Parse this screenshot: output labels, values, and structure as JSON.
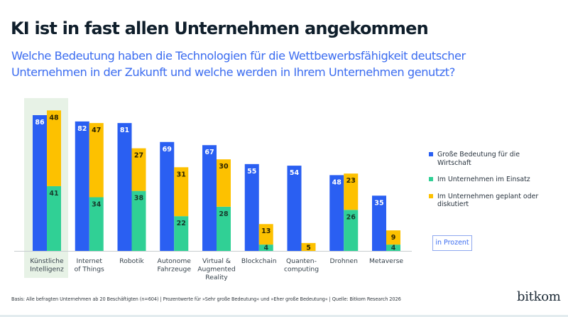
{
  "header": {
    "title": "KI ist in fast allen Unternehmen angekommen",
    "subtitle": "Welche Bedeutung haben die Technologien für die Wettbewerbsfähigkeit deutscher Unternehmen in der Zukunft und welche werden in Ihrem Unternehmen genutzt?"
  },
  "colors": {
    "blue": "#2a5ff2",
    "green": "#30d095",
    "yellow": "#fdc100",
    "highlight": "#e7f2e6",
    "axis": "#c8cdd0"
  },
  "chart_data": {
    "type": "bar",
    "title": "KI ist in fast allen Unternehmen angekommen",
    "xlabel": "",
    "ylabel": "",
    "ylim": [
      0,
      100
    ],
    "grid": false,
    "legend_position": "right",
    "highlighted_category": 0,
    "categories": [
      "Künstliche Intelligenz",
      "Internet of Things",
      "Robotik",
      "Autonome Fahrzeuge",
      "Virtual & Augmented Reality",
      "Blockchain",
      "Quanten-computing",
      "Drohnen",
      "Metaverse"
    ],
    "category_lines": [
      [
        "Künstliche",
        "Intelligenz"
      ],
      [
        "Internet",
        "of Things"
      ],
      [
        "Robotik"
      ],
      [
        "Autonome",
        "Fahrzeuge"
      ],
      [
        "Virtual &",
        "Augmented",
        "Reality"
      ],
      [
        "Blockchain"
      ],
      [
        "Quanten-",
        "computing"
      ],
      [
        "Drohnen"
      ],
      [
        "Metaverse"
      ]
    ],
    "series": [
      {
        "name": "Große Bedeutung für die Wirtschaft",
        "stack": "a",
        "color_key": "blue",
        "values": [
          86,
          82,
          81,
          69,
          67,
          55,
          54,
          48,
          35
        ]
      },
      {
        "name": "Im Unternehmen im Einsatz",
        "stack": "b",
        "color_key": "green",
        "values": [
          41,
          34,
          38,
          22,
          28,
          4,
          0,
          26,
          4
        ]
      },
      {
        "name": "Im Unternehmen geplant oder diskutiert",
        "stack": "b",
        "color_key": "yellow",
        "values": [
          48,
          47,
          27,
          31,
          30,
          13,
          5,
          23,
          9
        ]
      }
    ],
    "unit_label": "in Prozent"
  },
  "legend": {
    "items": [
      {
        "label": "Große Bedeutung für die Wirtschaft",
        "color_key": "blue"
      },
      {
        "label": "Im Unternehmen im Einsatz",
        "color_key": "green"
      },
      {
        "label": "Im Unternehmen geplant oder diskutiert",
        "color_key": "yellow"
      }
    ]
  },
  "unit_label": "in Prozent",
  "footer": {
    "note": "Basis: Alle befragten Unternehmen ab 20 Beschäftigten (n=604) | Prozentwerte für »Sehr große Bedeutung« und »Eher große Bedeutung« | Quelle: Bitkom Research 2026",
    "logo": "bitkom"
  }
}
